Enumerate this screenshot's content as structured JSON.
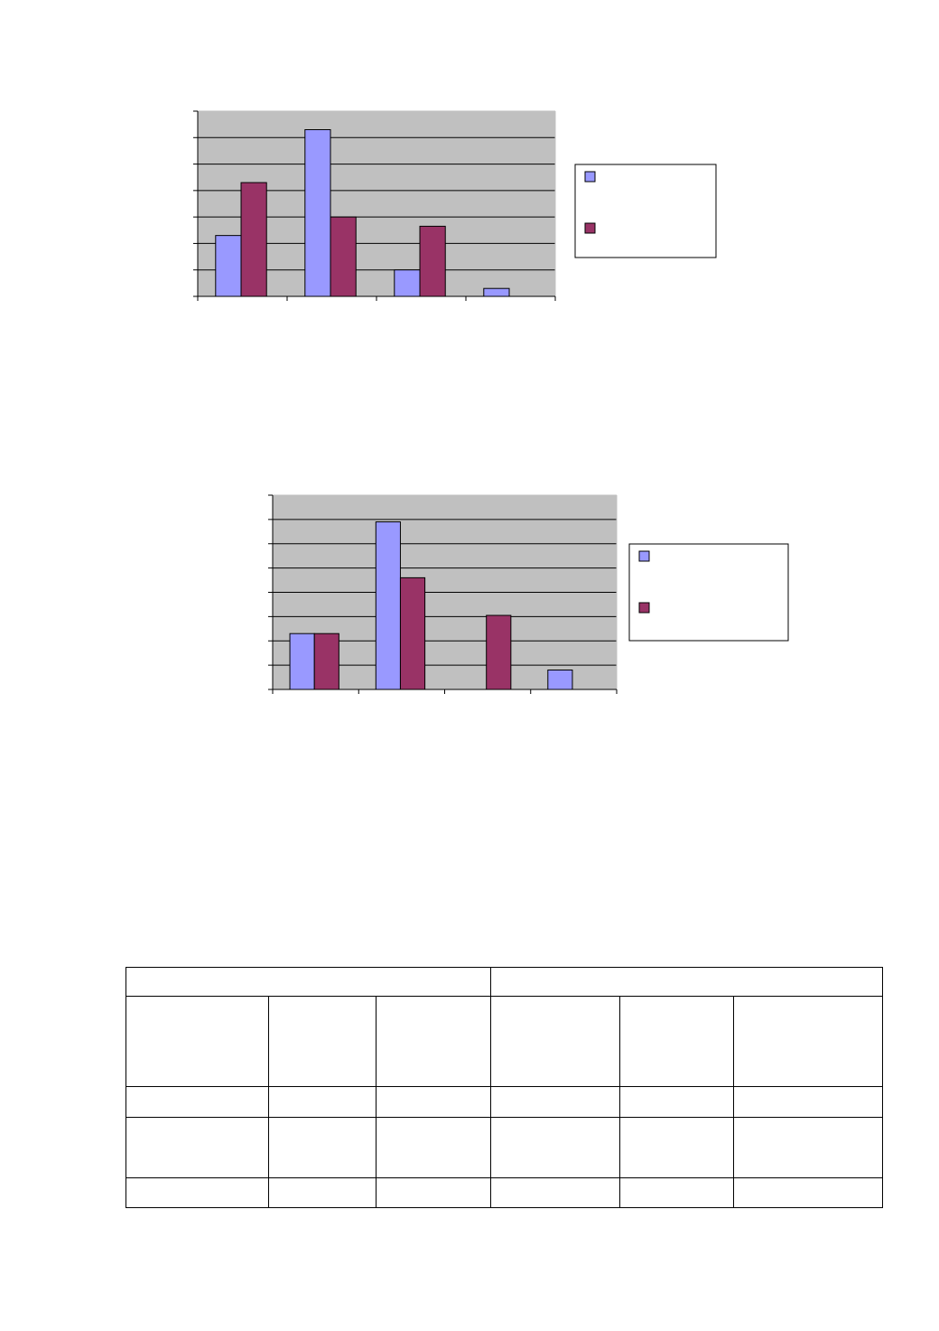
{
  "colors": {
    "series_a": "#9999ff",
    "series_b": "#993366",
    "plot_bg": "#c0c0c0",
    "grid": "#000000"
  },
  "chart_data": [
    {
      "type": "bar",
      "categories": [
        "",
        "",
        "",
        ""
      ],
      "series": [
        {
          "values": [
            2.3,
            6.3,
            1.0,
            0.3
          ]
        },
        {
          "values": [
            4.3,
            3.0,
            2.65,
            0
          ]
        }
      ],
      "ylim": [
        0,
        7
      ],
      "grid": true,
      "legend": "right"
    },
    {
      "type": "bar",
      "categories": [
        "",
        "",
        "",
        ""
      ],
      "series": [
        {
          "values": [
            2.3,
            6.9,
            0,
            0.8
          ]
        },
        {
          "values": [
            2.3,
            4.6,
            3.05,
            0
          ]
        }
      ],
      "ylim": [
        0,
        8
      ],
      "grid": true,
      "legend": "right"
    }
  ],
  "table": {
    "rows": [
      [
        "",
        ""
      ],
      [
        "",
        "",
        "",
        "",
        "",
        ""
      ],
      [
        "",
        "",
        "",
        "",
        "",
        ""
      ],
      [
        "",
        "",
        "",
        "",
        "",
        ""
      ],
      [
        "",
        "",
        "",
        "",
        "",
        ""
      ]
    ]
  }
}
